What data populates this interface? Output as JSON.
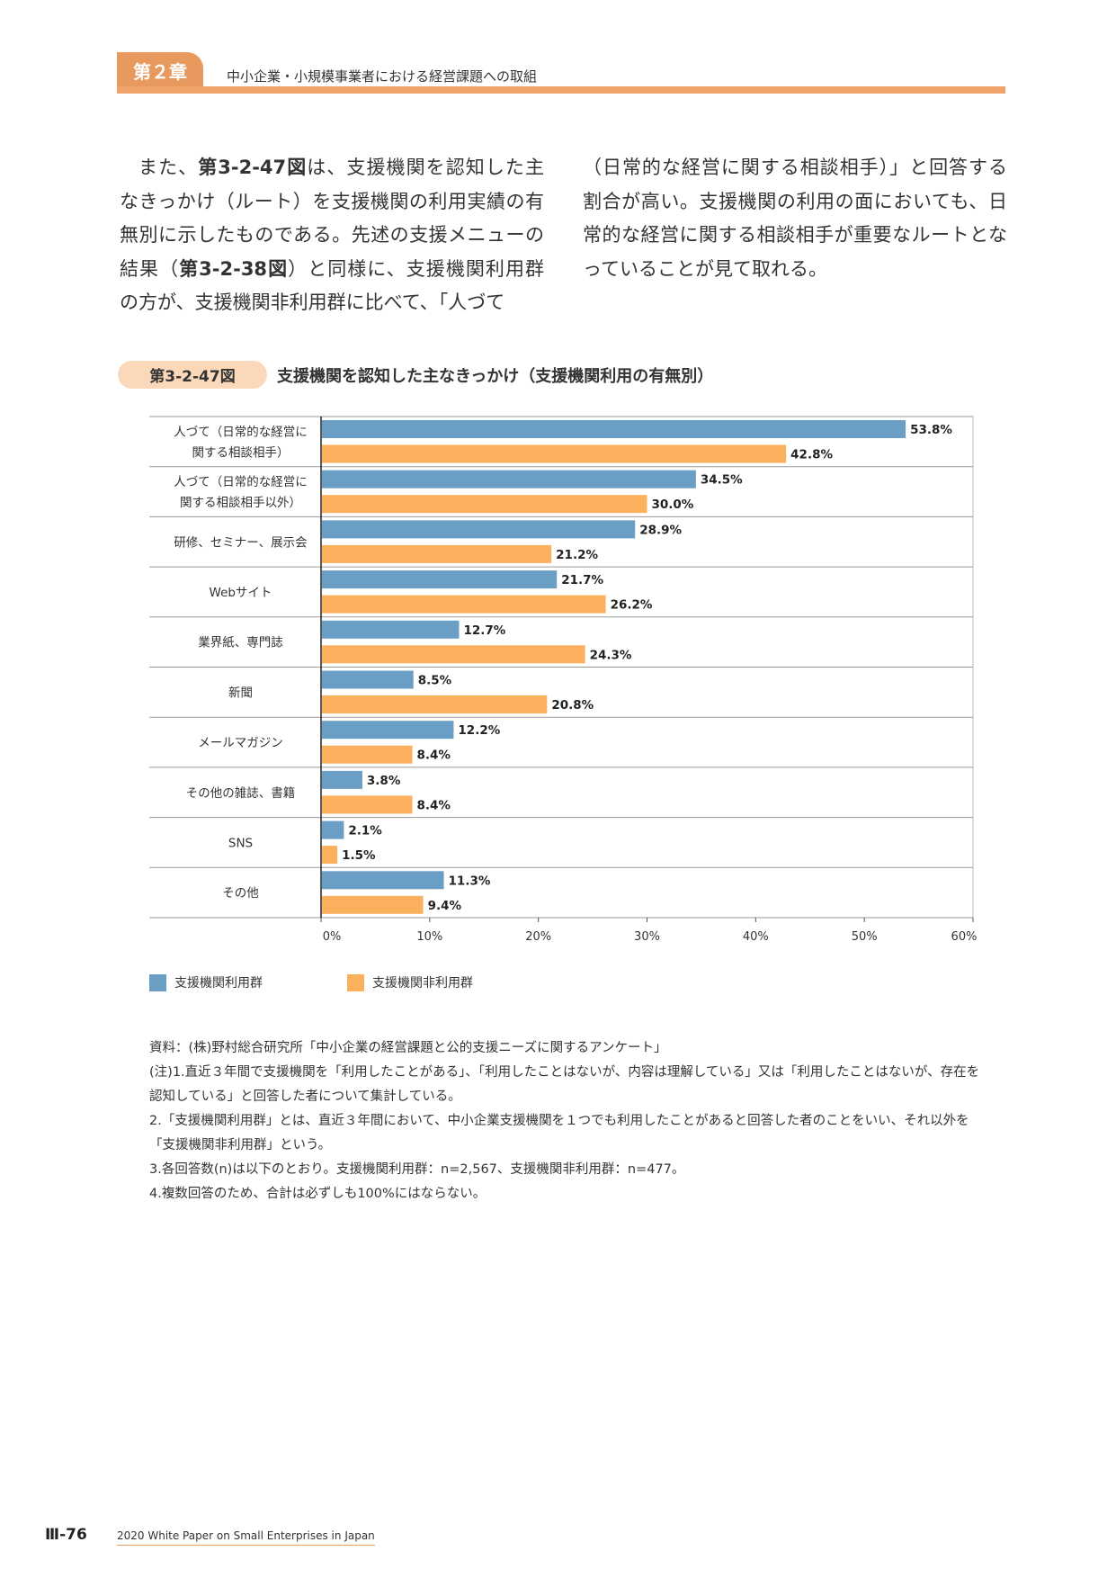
{
  "header": {
    "chapter": "第２章",
    "title": "中小企業・小規模事業者における経営課題への取組"
  },
  "body": {
    "left_p1": "また、",
    "left_ref1": "第3-2-47図",
    "left_p2": "は、支援機関を認知した主なきっかけ（ルート）を支援機関の利用実績の有無別に示したものである。先述の支援メニューの結果（",
    "left_ref2": "第3-2-38図",
    "left_p3": "）と同様に、支援機関利用群の方が、支援機関非利用群に比べて、「人づて",
    "right": "（日常的な経営に関する相談相手）」と回答する割合が高い。支援機関の利用の面においても、日常的な経営に関する相談相手が重要なルートとなっていることが見て取れる。"
  },
  "figure": {
    "number": "第3-2-47図",
    "title": "支援機関を認知した主なきっかけ（支援機関利用の有無別）"
  },
  "chart_data": {
    "type": "bar",
    "orientation": "horizontal",
    "categories": [
      [
        "人づて（日常的な経営に",
        "関する相談相手）"
      ],
      [
        "人づて（日常的な経営に",
        "関する相談相手以外）"
      ],
      [
        "研修、セミナー、展示会"
      ],
      [
        "Webサイト"
      ],
      [
        "業界紙、専門誌"
      ],
      [
        "新聞"
      ],
      [
        "メールマガジン"
      ],
      [
        "その他の雑誌、書籍"
      ],
      [
        "SNS"
      ],
      [
        "その他"
      ]
    ],
    "series": [
      {
        "name": "支援機関利用群",
        "color": "#6a9ec4",
        "values": [
          53.8,
          34.5,
          28.9,
          21.7,
          12.7,
          8.5,
          12.2,
          3.8,
          2.1,
          11.3
        ]
      },
      {
        "name": "支援機関非利用群",
        "color": "#fbb05e",
        "values": [
          42.8,
          30.0,
          21.2,
          26.2,
          24.3,
          20.8,
          8.4,
          8.4,
          1.5,
          9.4
        ]
      }
    ],
    "value_labels": [
      [
        "53.8%",
        "34.5%",
        "28.9%",
        "21.7%",
        "12.7%",
        "8.5%",
        "12.2%",
        "3.8%",
        "2.1%",
        "11.3%"
      ],
      [
        "42.8%",
        "30.0%",
        "21.2%",
        "26.2%",
        "24.3%",
        "20.8%",
        "8.4%",
        "8.4%",
        "1.5%",
        "9.4%"
      ]
    ],
    "xlim": [
      0,
      60
    ],
    "xticks": [
      0,
      10,
      20,
      30,
      40,
      50,
      60
    ],
    "xtick_labels": [
      "0%",
      "10%",
      "20%",
      "30%",
      "40%",
      "50%",
      "60%"
    ],
    "legend_position": "bottom-left"
  },
  "notes": [
    "資料：(株)野村総合研究所「中小企業の経営課題と公的支援ニーズに関するアンケート」",
    "(注)1.直近３年間で支援機関を「利用したことがある」、「利用したことはないが、内容は理解している」又は「利用したことはないが、存在を認知している」と回答した者について集計している。",
    "2.「支援機関利用群」とは、直近３年間において、中小企業支援機関を１つでも利用したことがあると回答した者のことをいい、それ以外を「支援機関非利用群」という。",
    "3.各回答数(n)は以下のとおり。支援機関利用群：n=2,567、支援機関非利用群：n=477。",
    "4.複数回答のため、合計は必ずしも100%にはならない。"
  ],
  "footer": {
    "page": "Ⅲ-76",
    "text": "2020 White Paper on Small Enterprises in Japan"
  }
}
